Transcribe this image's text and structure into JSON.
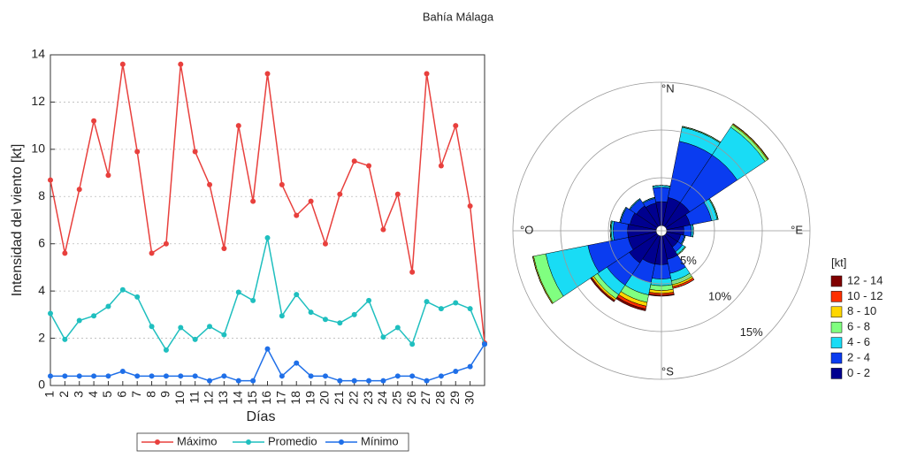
{
  "chart_data": [
    {
      "type": "line",
      "title": "Bahía Málaga",
      "xlabel": "Días",
      "ylabel": "Intensidad del viento [kt]",
      "x": [
        1,
        2,
        3,
        4,
        5,
        6,
        7,
        8,
        9,
        10,
        11,
        12,
        13,
        14,
        15,
        16,
        17,
        18,
        19,
        20,
        21,
        22,
        23,
        24,
        25,
        26,
        27,
        28,
        29,
        30,
        31
      ],
      "xlim": [
        1,
        31
      ],
      "xticks": [
        1,
        2,
        3,
        4,
        5,
        6,
        7,
        8,
        9,
        10,
        11,
        12,
        13,
        14,
        15,
        16,
        17,
        18,
        19,
        20,
        21,
        22,
        23,
        24,
        25,
        26,
        27,
        28,
        29,
        30
      ],
      "ylim": [
        0,
        14
      ],
      "yticks": [
        0,
        2,
        4,
        6,
        8,
        10,
        12,
        14
      ],
      "grid": true,
      "legend": "bottom",
      "series": [
        {
          "name": "Máximo",
          "color": "#e8403d",
          "values": [
            8.7,
            5.6,
            8.3,
            11.2,
            8.9,
            13.6,
            9.9,
            5.6,
            6.0,
            13.6,
            9.9,
            8.5,
            5.8,
            11.0,
            7.8,
            13.2,
            8.5,
            7.2,
            7.8,
            6.0,
            8.1,
            9.5,
            9.3,
            6.6,
            8.1,
            4.8,
            13.2,
            9.3,
            11.0,
            7.6,
            1.8
          ]
        },
        {
          "name": "Promedio",
          "color": "#1fbfbf",
          "values": [
            3.05,
            1.95,
            2.75,
            2.95,
            3.35,
            4.05,
            3.75,
            2.5,
            1.5,
            2.45,
            1.95,
            2.5,
            2.15,
            3.95,
            3.6,
            6.25,
            2.95,
            3.85,
            3.1,
            2.8,
            2.65,
            3.0,
            3.6,
            2.05,
            2.45,
            1.75,
            3.55,
            3.25,
            3.5,
            3.25,
            1.75
          ]
        },
        {
          "name": "Mínimo",
          "color": "#1f6fe8",
          "values": [
            0.4,
            0.4,
            0.4,
            0.4,
            0.4,
            0.6,
            0.4,
            0.4,
            0.4,
            0.4,
            0.4,
            0.2,
            0.4,
            0.2,
            0.2,
            1.55,
            0.4,
            0.95,
            0.4,
            0.4,
            0.2,
            0.2,
            0.2,
            0.2,
            0.4,
            0.4,
            0.2,
            0.4,
            0.6,
            0.8,
            1.75
          ]
        }
      ]
    },
    {
      "type": "windrose",
      "legend_title": "[kt]",
      "categories": [
        "°N",
        null,
        null,
        null,
        "°E",
        null,
        null,
        null,
        "°S",
        null,
        null,
        null,
        "°O",
        null,
        null,
        null
      ],
      "rlim": [
        0,
        15
      ],
      "rticks": [
        {
          "value": 5,
          "label": "5%"
        },
        {
          "value": 10,
          "label": "10%"
        },
        {
          "value": 15,
          "label": "15%"
        }
      ],
      "series": [
        {
          "name": "0 - 2",
          "color": "#00008f",
          "values": [
            2.5,
            3,
            3,
            2.5,
            1.8,
            1.5,
            1.5,
            2.5,
            3,
            3,
            3.5,
            3,
            3,
            2.8,
            2.6,
            2.4
          ]
        },
        {
          "name": "2 - 4",
          "color": "#0a3cf0",
          "values": [
            1.5,
            6,
            6,
            2.3,
            0.8,
            0.4,
            0.6,
            1.5,
            1.5,
            2,
            2.8,
            4.3,
            1.5,
            1,
            0.8,
            0.5
          ]
        },
        {
          "name": "4 - 6",
          "color": "#19dcf5",
          "values": [
            0.2,
            1.5,
            3.5,
            0.6,
            0.2,
            0.1,
            0.3,
            0.8,
            0.7,
            1.3,
            1.2,
            4.5,
            0.2,
            0.1,
            0.1,
            0.1
          ]
        },
        {
          "name": "6 - 8",
          "color": "#80ff80",
          "values": [
            0,
            0.1,
            0.3,
            0.1,
            0,
            0,
            0.1,
            0.4,
            0.5,
            0.8,
            0.5,
            1.3,
            0.1,
            0,
            0,
            0
          ]
        },
        {
          "name": "8 - 10",
          "color": "#ffd700",
          "values": [
            0,
            0,
            0.1,
            0,
            0,
            0,
            0,
            0.2,
            0.3,
            0.4,
            0.2,
            0.1,
            0,
            0,
            0,
            0
          ]
        },
        {
          "name": "10 - 12",
          "color": "#ff3000",
          "values": [
            0,
            0,
            0.05,
            0,
            0,
            0,
            0,
            0.2,
            0.2,
            0.3,
            0.1,
            0,
            0,
            0,
            0,
            0
          ]
        },
        {
          "name": "12 - 14",
          "color": "#800000",
          "values": [
            0,
            0,
            0,
            0,
            0,
            0,
            0,
            0,
            0.1,
            0.2,
            0.1,
            0,
            0,
            0,
            0,
            0
          ]
        }
      ]
    }
  ]
}
